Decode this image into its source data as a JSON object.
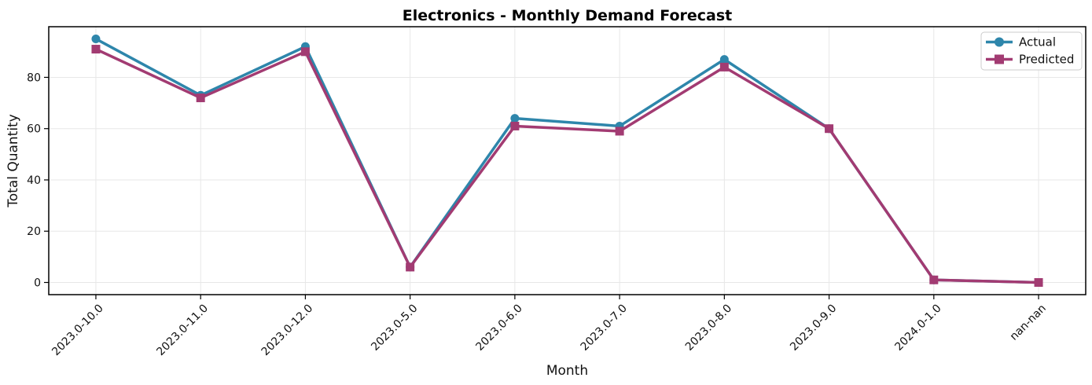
{
  "chart_data": {
    "type": "line",
    "title": "Electronics - Monthly Demand Forecast",
    "xlabel": "Month",
    "ylabel": "Total Quantity",
    "categories": [
      "2023.0-10.0",
      "2023.0-11.0",
      "2023.0-12.0",
      "2023.0-5.0",
      "2023.0-6.0",
      "2023.0-7.0",
      "2023.0-8.0",
      "2023.0-9.0",
      "2024.0-1.0",
      "nan-nan"
    ],
    "series": [
      {
        "name": "Actual",
        "color": "#2e86ab",
        "marker": "circle",
        "values": [
          95,
          73,
          92,
          6,
          64,
          61,
          87,
          60,
          1,
          0
        ]
      },
      {
        "name": "Predicted",
        "color": "#a23b72",
        "marker": "square",
        "values": [
          91,
          72,
          90,
          6,
          61,
          59,
          84,
          60,
          1,
          0
        ]
      }
    ],
    "yticks": [
      0,
      20,
      40,
      60,
      80
    ],
    "ylim": [
      -4.75,
      99.75
    ],
    "x_margin": 0.45,
    "grid": true,
    "legend_position": "top-right",
    "line_width": 3.5,
    "marker_size": 11
  }
}
